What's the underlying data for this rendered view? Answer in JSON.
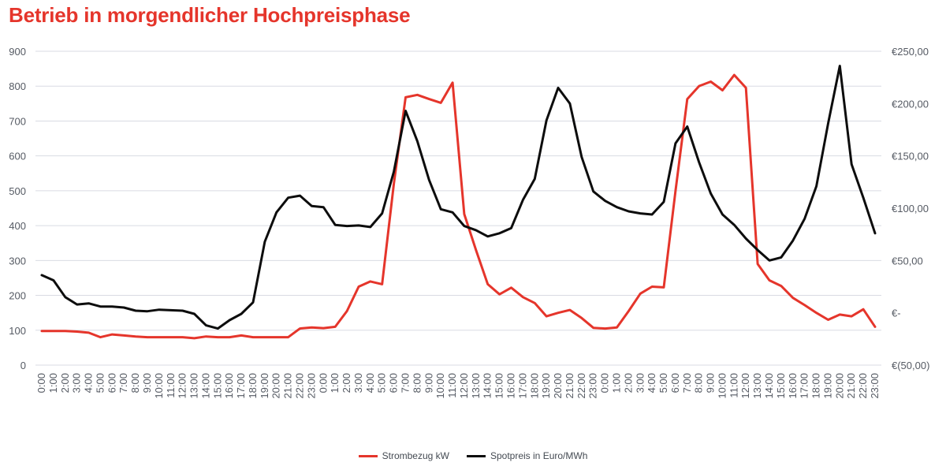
{
  "title": "Betrieb in morgendlicher Hochpreisphase",
  "chart_data": {
    "type": "line",
    "x_ticks": [
      "0:00",
      "1:00",
      "2:00",
      "3:00",
      "4:00",
      "5:00",
      "6:00",
      "7:00",
      "8:00",
      "9:00",
      "10:00",
      "11:00",
      "12:00",
      "13:00",
      "14:00",
      "15:00",
      "16:00",
      "17:00",
      "18:00",
      "19:00",
      "20:00",
      "21:00",
      "22:00",
      "23:00",
      "0:00",
      "1:00",
      "2:00",
      "3:00",
      "4:00",
      "5:00",
      "6:00",
      "7:00",
      "8:00",
      "9:00",
      "10:00",
      "11:00",
      "12:00",
      "13:00",
      "14:00",
      "15:00",
      "16:00",
      "17:00",
      "18:00",
      "19:00",
      "20:00",
      "21:00",
      "22:00",
      "23:00",
      "0:00",
      "1:00",
      "2:00",
      "3:00",
      "4:00",
      "5:00",
      "6:00",
      "7:00",
      "8:00",
      "9:00",
      "10:00",
      "11:00",
      "12:00",
      "13:00",
      "14:00",
      "15:00",
      "16:00",
      "17:00",
      "18:00",
      "19:00",
      "20:00",
      "21:00",
      "22:00",
      "23:00"
    ],
    "y_left": {
      "min": 0,
      "max": 900,
      "ticks": [
        0,
        100,
        200,
        300,
        400,
        500,
        600,
        700,
        800,
        900
      ]
    },
    "y_right": {
      "min": -50,
      "max": 250,
      "tick_values": [
        -50,
        0,
        50,
        100,
        150,
        200,
        250
      ],
      "tick_labels": [
        "€(50,00)",
        "€-",
        "€50,00",
        "€100,00",
        "€150,00",
        "€200,00",
        "€250,00"
      ]
    },
    "series": [
      {
        "name": "Strombezug kW",
        "color": "#e5352b",
        "axis": "left",
        "values": [
          98,
          98,
          98,
          96,
          93,
          80,
          88,
          85,
          82,
          80,
          80,
          80,
          80,
          77,
          82,
          80,
          80,
          85,
          80,
          80,
          80,
          80,
          105,
          108,
          106,
          110,
          155,
          225,
          240,
          232,
          520,
          768,
          775,
          763,
          752,
          810,
          433,
          330,
          232,
          203,
          222,
          195,
          178,
          140,
          150,
          158,
          135,
          107,
          105,
          108,
          155,
          205,
          225,
          223,
          500,
          763,
          800,
          813,
          788,
          832,
          795,
          290,
          243,
          227,
          193,
          172,
          150,
          130,
          145,
          140,
          160,
          110
        ]
      },
      {
        "name": "Spotpreis in Euro/MWh",
        "color": "#0d0d0d",
        "axis": "right",
        "values": [
          36,
          31,
          15,
          8,
          9,
          6,
          6,
          5,
          2,
          1.5,
          3,
          2.5,
          2,
          -1,
          -12,
          -15,
          -7,
          -1,
          10,
          68,
          96,
          110,
          112,
          102,
          101,
          84,
          83,
          83.5,
          82,
          95,
          135,
          193,
          164,
          127,
          99,
          96,
          83,
          79,
          73,
          76,
          81,
          108,
          128,
          184,
          215,
          200,
          149,
          116,
          107,
          101,
          97,
          95,
          94,
          106,
          162,
          178,
          144,
          114,
          94,
          84,
          71,
          60,
          50,
          53,
          69,
          90,
          121,
          181,
          236,
          142,
          110,
          76
        ]
      }
    ]
  }
}
